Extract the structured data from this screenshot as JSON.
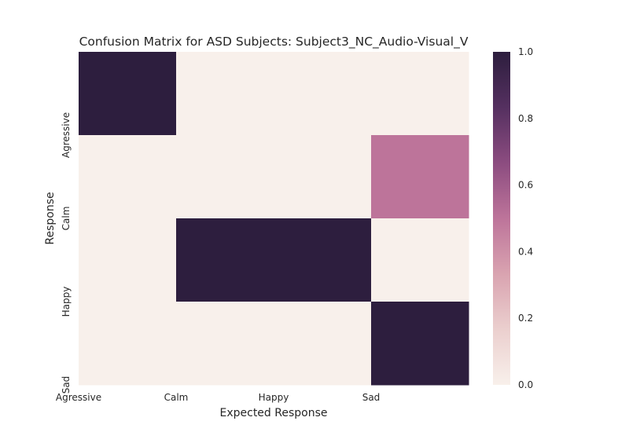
{
  "chart_data": {
    "type": "heatmap",
    "title": "Confusion Matrix for ASD Subjects: Subject3_NC_Audio-Visual_V",
    "xlabel": "Expected Response",
    "ylabel": "Response",
    "x_tick_labels": [
      "Agressive",
      "Calm",
      "Happy",
      "Sad"
    ],
    "y_tick_labels": [
      "Agressive",
      "Calm",
      "Happy",
      "Sad"
    ],
    "columns": 4,
    "rows": 4,
    "values": [
      [
        1.0,
        0.0,
        0.0,
        0.0
      ],
      [
        0.0,
        0.0,
        0.0,
        0.5
      ],
      [
        0.0,
        1.0,
        1.0,
        0.0
      ],
      [
        0.0,
        0.0,
        0.0,
        1.0
      ]
    ],
    "colorbar": {
      "min": 0.0,
      "max": 1.0,
      "ticks": [
        "0.0",
        "0.2",
        "0.4",
        "0.6",
        "0.8",
        "1.0"
      ],
      "colors": [
        "#f8f0eb",
        "#ebcfce",
        "#d9a3b0",
        "#bd749a",
        "#8c4c80",
        "#553060",
        "#2d1e3e"
      ]
    }
  }
}
